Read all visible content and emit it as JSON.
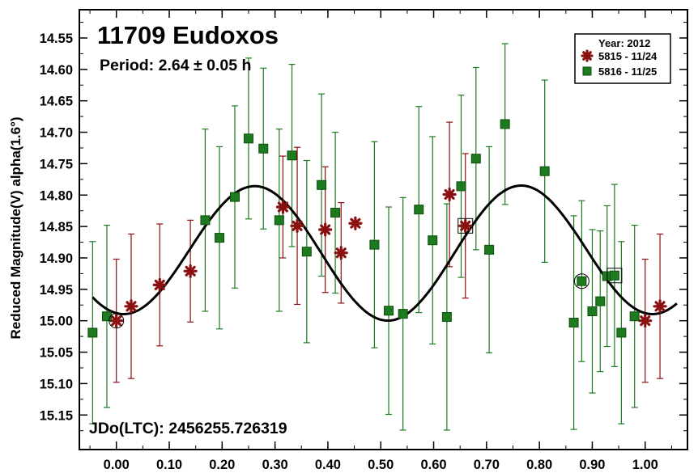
{
  "chart_data": {
    "type": "scatter",
    "title": "11709 Eudoxos",
    "subtitle": "Period: 2.64 ± 0.05 h",
    "annotation": "JDo(LTC): 2456255.726319",
    "xlabel": "",
    "ylabel": "Reduced Magnitude(V) alpha(1.6°)",
    "xlim": [
      -0.07,
      1.08
    ],
    "ylim": [
      15.205,
      14.505
    ],
    "y_inverted": true,
    "grid": false,
    "legend_position": "top-right",
    "legend_title": "Year: 2012",
    "x_ticks": [
      0.0,
      0.1,
      0.2,
      0.3,
      0.4,
      0.5,
      0.6,
      0.7,
      0.8,
      0.9,
      1.0
    ],
    "x_tick_labels": [
      "0.00",
      "0.10",
      "0.20",
      "0.30",
      "0.40",
      "0.50",
      "0.60",
      "0.70",
      "0.80",
      "0.90",
      "1.00"
    ],
    "y_ticks": [
      14.55,
      14.6,
      14.65,
      14.7,
      14.75,
      14.8,
      14.85,
      14.9,
      14.95,
      15.0,
      15.05,
      15.1,
      15.15
    ],
    "y_tick_labels": [
      "14.55",
      "14.60",
      "14.65",
      "14.70",
      "14.75",
      "14.80",
      "14.85",
      "14.90",
      "14.95",
      "15.00",
      "15.05",
      "15.10",
      "15.15"
    ],
    "series": [
      {
        "name": "5815 - 11/24",
        "marker": "asterisk",
        "color": "#8b1010",
        "points": [
          {
            "x": 0.0,
            "y": 15.0,
            "err": 0.098
          },
          {
            "x": 0.028,
            "y": 14.977,
            "err": 0.115
          },
          {
            "x": 0.082,
            "y": 14.943,
            "err": 0.097
          },
          {
            "x": 0.14,
            "y": 14.921,
            "err": 0.081
          },
          {
            "x": 0.315,
            "y": 14.819,
            "err": 0.081
          },
          {
            "x": 0.342,
            "y": 14.849,
            "err": 0.125
          },
          {
            "x": 0.395,
            "y": 14.855,
            "err": 0.1
          },
          {
            "x": 0.425,
            "y": 14.892,
            "err": 0.08
          },
          {
            "x": 0.452,
            "y": 14.845,
            "err": 0.0
          },
          {
            "x": 0.63,
            "y": 14.799,
            "err": 0.115
          },
          {
            "x": 0.66,
            "y": 14.849,
            "err": 0.115
          },
          {
            "x": 1.0,
            "y": 15.0,
            "err": 0.098
          },
          {
            "x": 1.028,
            "y": 14.977,
            "err": 0.115
          }
        ]
      },
      {
        "name": "5816 - 11/25",
        "marker": "square",
        "color": "#1e7a1e",
        "points": [
          {
            "x": -0.045,
            "y": 15.019,
            "err": 0.145
          },
          {
            "x": -0.018,
            "y": 14.993,
            "err": 0.145
          },
          {
            "x": 0.168,
            "y": 14.84,
            "err": 0.145
          },
          {
            "x": 0.195,
            "y": 14.868,
            "err": 0.145
          },
          {
            "x": 0.224,
            "y": 14.803,
            "err": 0.145
          },
          {
            "x": 0.25,
            "y": 14.71,
            "err": 0.128
          },
          {
            "x": 0.278,
            "y": 14.726,
            "err": 0.128
          },
          {
            "x": 0.308,
            "y": 14.84,
            "err": 0.145
          },
          {
            "x": 0.332,
            "y": 14.737,
            "err": 0.145
          },
          {
            "x": 0.36,
            "y": 14.89,
            "err": 0.145
          },
          {
            "x": 0.388,
            "y": 14.784,
            "err": 0.145
          },
          {
            "x": 0.414,
            "y": 14.828,
            "err": 0.128
          },
          {
            "x": 0.488,
            "y": 14.879,
            "err": 0.164
          },
          {
            "x": 0.515,
            "y": 14.984,
            "err": 0.165
          },
          {
            "x": 0.542,
            "y": 14.989,
            "err": 0.185
          },
          {
            "x": 0.572,
            "y": 14.823,
            "err": 0.164
          },
          {
            "x": 0.598,
            "y": 14.872,
            "err": 0.165
          },
          {
            "x": 0.625,
            "y": 14.994,
            "err": 0.18
          },
          {
            "x": 0.652,
            "y": 14.786,
            "err": 0.145
          },
          {
            "x": 0.68,
            "y": 14.742,
            "err": 0.145
          },
          {
            "x": 0.705,
            "y": 14.887,
            "err": 0.164
          },
          {
            "x": 0.735,
            "y": 14.687,
            "err": 0.128
          },
          {
            "x": 0.81,
            "y": 14.762,
            "err": 0.145
          },
          {
            "x": 0.865,
            "y": 15.003,
            "err": 0.17
          },
          {
            "x": 0.88,
            "y": 14.937,
            "err": 0.128
          },
          {
            "x": 0.9,
            "y": 14.985,
            "err": 0.13
          },
          {
            "x": 0.915,
            "y": 14.969,
            "err": 0.112
          },
          {
            "x": 0.928,
            "y": 14.929,
            "err": 0.112
          },
          {
            "x": 0.942,
            "y": 14.928,
            "err": 0.145
          },
          {
            "x": 0.955,
            "y": 15.019,
            "err": 0.145
          },
          {
            "x": 0.98,
            "y": 14.993,
            "err": 0.145
          }
        ]
      }
    ],
    "fit_curve": {
      "mean": 14.89,
      "terms": [
        {
          "k": 1,
          "cos": -0.0052,
          "sin": 0.0
        },
        {
          "k": 2,
          "cos": 0.1031,
          "sin": 0.0178
        }
      ]
    },
    "highlighted_points": [
      {
        "series": "5815 - 11/24",
        "x": 0.0,
        "y": 15.0,
        "shape": "circle"
      },
      {
        "series": "5815 - 11/24",
        "x": 0.66,
        "y": 14.849,
        "shape": "square"
      },
      {
        "series": "5816 - 11/25",
        "x": 0.88,
        "y": 14.937,
        "shape": "circle"
      },
      {
        "series": "5816 - 11/25",
        "x": 0.942,
        "y": 14.928,
        "shape": "square"
      }
    ]
  }
}
